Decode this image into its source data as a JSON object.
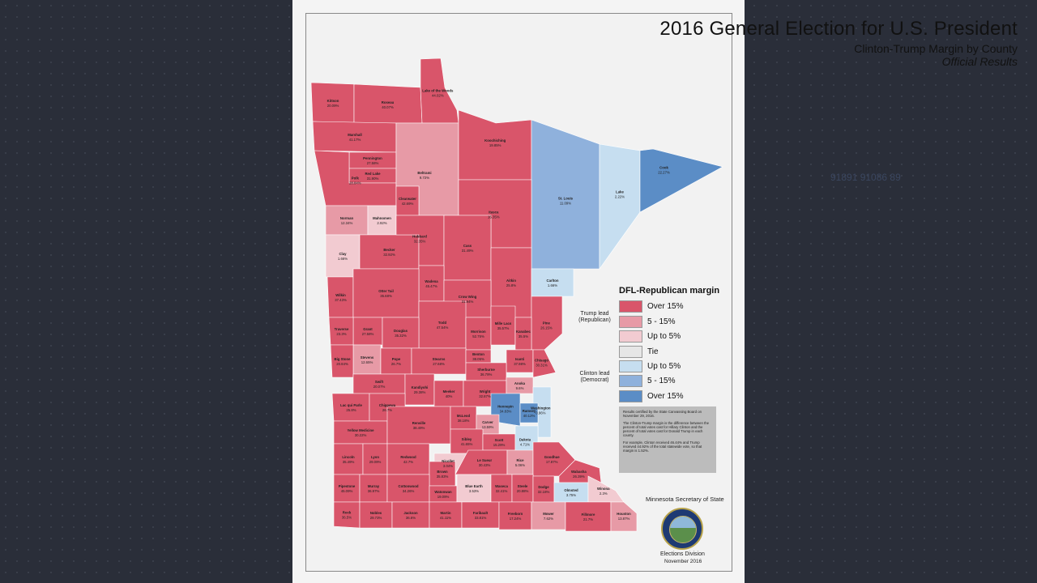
{
  "background_text": "91891 91086 89",
  "title": "2016 General Election for U.S. President",
  "subtitle": "Clinton-Trump Margin by County",
  "subtitle2": "Official Results",
  "colors": {
    "trump_over15": "#d9556a",
    "trump_5_15": "#e79aa6",
    "trump_upto5": "#f2cbd1",
    "tie": "#e6e6e6",
    "clinton_upto5": "#c6def0",
    "clinton_5_15": "#8fb1dc",
    "clinton_over15": "#5b8dc6"
  },
  "legend": {
    "title": "DFL-Republican margin",
    "trump_group": "Trump lead (Republican)",
    "clinton_group": "Clinton lead (Democrat)",
    "items": [
      {
        "label": "Over 15%",
        "color": "#d9556a"
      },
      {
        "label": "5 - 15%",
        "color": "#e79aa6"
      },
      {
        "label": "Up to 5%",
        "color": "#f2cbd1"
      },
      {
        "label": "Tie",
        "color": "#e6e6e6"
      },
      {
        "label": "Up to 5%",
        "color": "#c6def0"
      },
      {
        "label": "5 - 15%",
        "color": "#8fb1dc"
      },
      {
        "label": "Over 15%",
        "color": "#5b8dc6"
      }
    ]
  },
  "note": {
    "p1": "Results certified by the State Canvassing Board on November 29, 2016.",
    "p2": "The Clinton-Trump margin is the difference between the percent of total votes cast for Hillary Clinton and the percent of total votes cast for Donald Trump in each county.",
    "p3": "For example, Clinton received 46.44% and Trump received 44.92% of the total statewide vote, so that margin is 1.52%."
  },
  "office": "Minnesota Secretary of State",
  "division": "Elections Division",
  "date": "November 2016",
  "counties": [
    {
      "name": "Kittson",
      "margin": "20.09%",
      "cat": "R3"
    },
    {
      "name": "Roseau",
      "margin": "40.07%",
      "cat": "R3"
    },
    {
      "name": "Lake of the Woods",
      "margin": "44.02%",
      "cat": "R3"
    },
    {
      "name": "Marshall",
      "margin": "41.17%",
      "cat": "R3"
    },
    {
      "name": "Pennington",
      "margin": "27.58%",
      "cat": "R3"
    },
    {
      "name": "Red Lake",
      "margin": "31.90%",
      "cat": "R3"
    },
    {
      "name": "Polk",
      "margin": "28.84%",
      "cat": "R3"
    },
    {
      "name": "Beltrami",
      "margin": "9.72%",
      "cat": "R2"
    },
    {
      "name": "Koochiching",
      "margin": "19.85%",
      "cat": "R3"
    },
    {
      "name": "Clearwater",
      "margin": "42.69%",
      "cat": "R3"
    },
    {
      "name": "St. Louis",
      "margin": "11.09%",
      "cat": "D2"
    },
    {
      "name": "Lake",
      "margin": "2.22%",
      "cat": "D1"
    },
    {
      "name": "Cook",
      "margin": "22.27%",
      "cat": "D3"
    },
    {
      "name": "Itasca",
      "margin": "16.35%",
      "cat": "R3"
    },
    {
      "name": "Norman",
      "margin": "12.34%",
      "cat": "R2"
    },
    {
      "name": "Mahnomen",
      "margin": "2.92%",
      "cat": "R1"
    },
    {
      "name": "Clay",
      "margin": "1.66%",
      "cat": "R1"
    },
    {
      "name": "Becker",
      "margin": "32.92%",
      "cat": "R3"
    },
    {
      "name": "Hubbard",
      "margin": "32.35%",
      "cat": "R3"
    },
    {
      "name": "Cass",
      "margin": "31.49%",
      "cat": "R3"
    },
    {
      "name": "Wadena",
      "margin": "45.47%",
      "cat": "R3"
    },
    {
      "name": "Aitkin",
      "margin": "25.8%",
      "cat": "R3"
    },
    {
      "name": "Carlton",
      "margin": "1.66%",
      "cat": "D1"
    },
    {
      "name": "Wilkin",
      "margin": "37.43%",
      "cat": "R3"
    },
    {
      "name": "Otter Tail",
      "margin": "35.68%",
      "cat": "R3"
    },
    {
      "name": "Crow Wing",
      "margin": "31.94%",
      "cat": "R3"
    },
    {
      "name": "Todd",
      "margin": "47.54%",
      "cat": "R3"
    },
    {
      "name": "Morrison",
      "margin": "52.75%",
      "cat": "R3"
    },
    {
      "name": "Mille Lacs",
      "margin": "35.57%",
      "cat": "R3"
    },
    {
      "name": "Pine",
      "margin": "26.15%",
      "cat": "R3"
    },
    {
      "name": "Kanabec",
      "margin": "35.5%",
      "cat": "R3"
    },
    {
      "name": "Grant",
      "margin": "27.58%",
      "cat": "R3"
    },
    {
      "name": "Douglas",
      "margin": "35.32%",
      "cat": "R3"
    },
    {
      "name": "Traverse",
      "margin": "23.3%",
      "cat": "R3"
    },
    {
      "name": "Stevens",
      "margin": "12.65%",
      "cat": "R2"
    },
    {
      "name": "Pope",
      "margin": "26.7%",
      "cat": "R3"
    },
    {
      "name": "Stearns",
      "margin": "27.68%",
      "cat": "R3"
    },
    {
      "name": "Benton",
      "margin": "38.05%",
      "cat": "R3"
    },
    {
      "name": "Isanti",
      "margin": "37.98%",
      "cat": "R3"
    },
    {
      "name": "Chisago",
      "margin": "30.31%",
      "cat": "R3"
    },
    {
      "name": "Sherburne",
      "margin": "36.79%",
      "cat": "R3"
    },
    {
      "name": "Big Stone",
      "margin": "20.84%",
      "cat": "R3"
    },
    {
      "name": "Swift",
      "margin": "20.07%",
      "cat": "R3"
    },
    {
      "name": "Kandiyohi",
      "margin": "29.38%",
      "cat": "R3"
    },
    {
      "name": "Meeker",
      "margin": "40%",
      "cat": "R3"
    },
    {
      "name": "Wright",
      "margin": "32.87%",
      "cat": "R3"
    },
    {
      "name": "Anoka",
      "margin": "9.6%",
      "cat": "R2"
    },
    {
      "name": "Washington",
      "margin": "0.96%",
      "cat": "D1"
    },
    {
      "name": "Hennepin",
      "margin": "34.83%",
      "cat": "D3"
    },
    {
      "name": "Ramsey",
      "margin": "40.12%",
      "cat": "D3"
    },
    {
      "name": "Lac qui Parle",
      "margin": "25.8%",
      "cat": "R3"
    },
    {
      "name": "Chippewa",
      "margin": "26.7%",
      "cat": "R3"
    },
    {
      "name": "Yellow Medicine",
      "margin": "30.22%",
      "cat": "R3"
    },
    {
      "name": "Renville",
      "margin": "38.49%",
      "cat": "R3"
    },
    {
      "name": "McLeod",
      "margin": "38.18%",
      "cat": "R3"
    },
    {
      "name": "Carver",
      "margin": "13.59%",
      "cat": "R2"
    },
    {
      "name": "Sibley",
      "margin": "41.65%",
      "cat": "R3"
    },
    {
      "name": "Scott",
      "margin": "15.29%",
      "cat": "R3"
    },
    {
      "name": "Dakota",
      "margin": "4.71%",
      "cat": "D1"
    },
    {
      "name": "Lincoln",
      "margin": "35.49%",
      "cat": "R3"
    },
    {
      "name": "Lyon",
      "margin": "29.09%",
      "cat": "R3"
    },
    {
      "name": "Redwood",
      "margin": "42.7%",
      "cat": "R3"
    },
    {
      "name": "Nicollet",
      "margin": "3.04%",
      "cat": "R1"
    },
    {
      "name": "Le Sueur",
      "margin": "30.43%",
      "cat": "R3"
    },
    {
      "name": "Rice",
      "margin": "5.06%",
      "cat": "R2"
    },
    {
      "name": "Goodhue",
      "margin": "17.87%",
      "cat": "R3"
    },
    {
      "name": "Wabasha",
      "margin": "26.39%",
      "cat": "R3"
    },
    {
      "name": "Brown",
      "margin": "35.83%",
      "cat": "R3"
    },
    {
      "name": "Pipestone",
      "margin": "45.09%",
      "cat": "R3"
    },
    {
      "name": "Murray",
      "margin": "36.97%",
      "cat": "R3"
    },
    {
      "name": "Cottonwood",
      "margin": "34.26%",
      "cat": "R3"
    },
    {
      "name": "Watonwan",
      "margin": "19.09%",
      "cat": "R3"
    },
    {
      "name": "Blue Earth",
      "margin": "3.53%",
      "cat": "R1"
    },
    {
      "name": "Waseca",
      "margin": "32.41%",
      "cat": "R3"
    },
    {
      "name": "Steele",
      "margin": "20.88%",
      "cat": "R3"
    },
    {
      "name": "Dodge",
      "margin": "32.18%",
      "cat": "R3"
    },
    {
      "name": "Olmsted",
      "margin": "3.75%",
      "cat": "D1"
    },
    {
      "name": "Winona",
      "margin": "2.3%",
      "cat": "R1"
    },
    {
      "name": "Rock",
      "margin": "36.5%",
      "cat": "R3"
    },
    {
      "name": "Nobles",
      "margin": "29.73%",
      "cat": "R3"
    },
    {
      "name": "Jackson",
      "margin": "36.6%",
      "cat": "R3"
    },
    {
      "name": "Martin",
      "margin": "41.11%",
      "cat": "R3"
    },
    {
      "name": "Faribault",
      "margin": "33.81%",
      "cat": "R3"
    },
    {
      "name": "Freeborn",
      "margin": "17.24%",
      "cat": "R3"
    },
    {
      "name": "Mower",
      "margin": "7.62%",
      "cat": "R2"
    },
    {
      "name": "Fillmore",
      "margin": "21.7%",
      "cat": "R3"
    },
    {
      "name": "Houston",
      "margin": "13.87%",
      "cat": "R2"
    }
  ]
}
